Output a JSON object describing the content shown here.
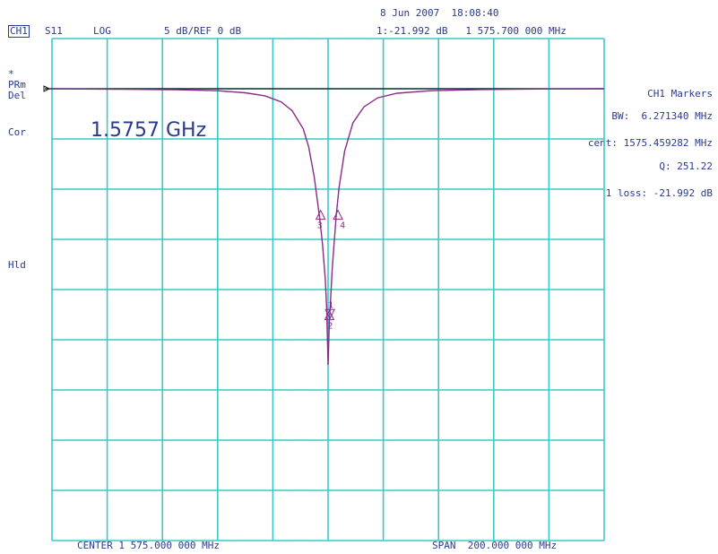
{
  "header": {
    "date_time": "8 Jun 2007  18:08:40",
    "channel": "CH1",
    "param": "S11",
    "format": "LOG",
    "scale": "5 dB/REF 0 dB",
    "marker_readout": "1:-21.992 dB   1 575.700 000 MHz"
  },
  "left_annotations": [
    "*",
    "PRm",
    "Del",
    "Cor",
    "Hld"
  ],
  "markers_panel": {
    "title": "CH1 Markers",
    "bw": "BW:  6.271340 MHz",
    "cent": "cent: 1575.459282 MHz",
    "q": "Q: 251.22",
    "loss": "1 loss: -21.992 dB"
  },
  "footer": {
    "center": "CENTER 1 575.000 000 MHz",
    "span": "SPAN  200.000 000 MHz"
  },
  "colors": {
    "grid": "#3cc8c8",
    "trace": "#8a2a8a",
    "reference": "#111111",
    "text": "#2a3a8c"
  },
  "chart_data": {
    "type": "line",
    "title": "1.5757 GHz",
    "xlabel": "",
    "ylabel": "",
    "x_center_mhz": 1575.0,
    "x_span_mhz": 200.0,
    "xlim": [
      1475.0,
      1675.0
    ],
    "ylim": [
      -45,
      5
    ],
    "grid": true,
    "y_ref_db": 0,
    "y_scale_db_per_div": 5,
    "series": [
      {
        "x": [
          1475,
          1500,
          1520,
          1535,
          1545,
          1552,
          1558,
          1562,
          1566,
          1568,
          1570,
          1572,
          1573,
          1574,
          1574.5,
          1575,
          1575.5,
          1575.7,
          1576,
          1576.5,
          1577,
          1578,
          1579,
          1581,
          1584,
          1588,
          1593,
          1600,
          1612,
          1630,
          1655,
          1675
        ],
        "y": [
          0,
          -0.05,
          -0.1,
          -0.2,
          -0.4,
          -0.7,
          -1.3,
          -2.2,
          -4.0,
          -5.8,
          -8.8,
          -13.0,
          -15.5,
          -19.0,
          -22.0,
          -27.5,
          -23.0,
          -21.99,
          -20.5,
          -18.0,
          -16.0,
          -12.5,
          -9.8,
          -6.2,
          -3.4,
          -1.8,
          -0.9,
          -0.45,
          -0.2,
          -0.08,
          -0.02,
          0
        ]
      }
    ],
    "markers": [
      {
        "label": "1",
        "x": 1575.7,
        "y": -21.992
      },
      {
        "label": "2",
        "x": 1575.46,
        "y": -23.0
      },
      {
        "label": "3",
        "x": 1572.3,
        "y": -13.0
      },
      {
        "label": "4",
        "x": 1578.6,
        "y": -13.0
      }
    ]
  }
}
